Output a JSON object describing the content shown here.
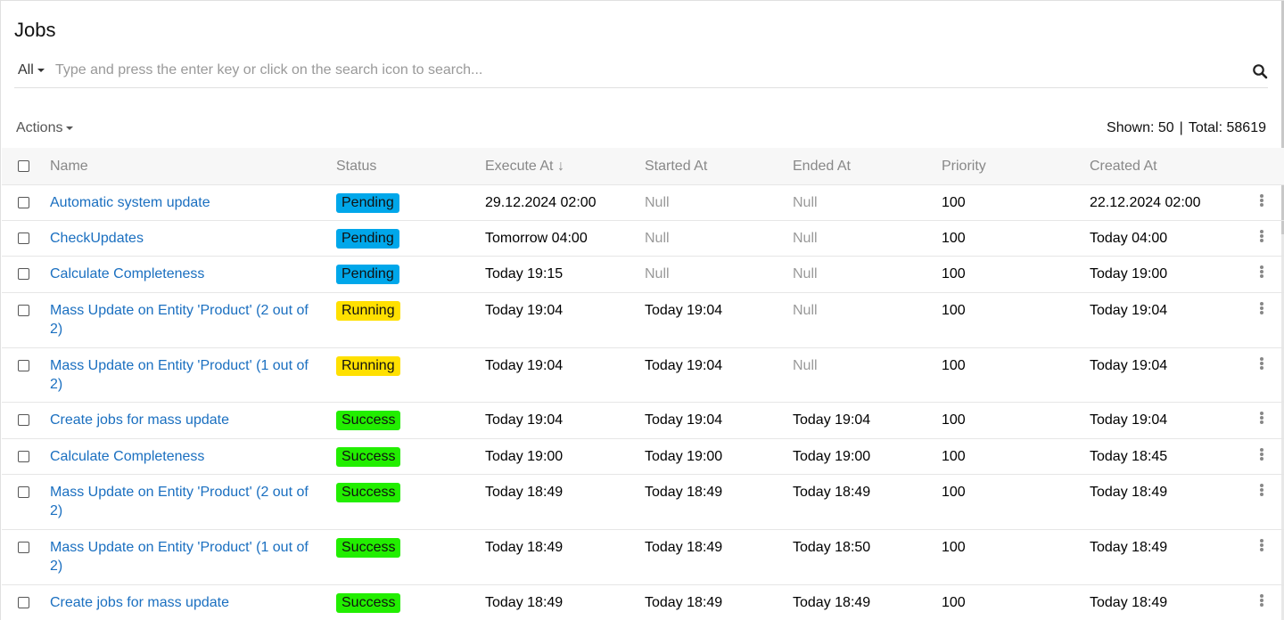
{
  "page": {
    "title": "Jobs"
  },
  "search": {
    "filter_label": "All",
    "placeholder": "Type and press the enter key or click on the search icon to search...",
    "icon": "search-icon"
  },
  "toolbar": {
    "actions_label": "Actions",
    "shown_label": "Shown: 50",
    "separator": "|",
    "total_label": "Total: 58619"
  },
  "table": {
    "columns": {
      "name": "Name",
      "status": "Status",
      "execute_at": "Execute At",
      "execute_sort_icon": "↓",
      "started_at": "Started At",
      "ended_at": "Ended At",
      "priority": "Priority",
      "created_at": "Created At"
    },
    "status_colors": {
      "Pending": "#00a7ea",
      "Running": "#ffe000",
      "Success": "#22ee00"
    },
    "rows": [
      {
        "name": "Automatic system update",
        "status": "Pending",
        "execute_at": "29.12.2024 02:00",
        "started_at": "Null",
        "ended_at": "Null",
        "priority": "100",
        "created_at": "22.12.2024 02:00"
      },
      {
        "name": "CheckUpdates",
        "status": "Pending",
        "execute_at": "Tomorrow 04:00",
        "started_at": "Null",
        "ended_at": "Null",
        "priority": "100",
        "created_at": "Today 04:00"
      },
      {
        "name": "Calculate Completeness",
        "status": "Pending",
        "execute_at": "Today 19:15",
        "started_at": "Null",
        "ended_at": "Null",
        "priority": "100",
        "created_at": "Today 19:00"
      },
      {
        "name": "Mass Update on Entity 'Product' (2 out of 2)",
        "status": "Running",
        "execute_at": "Today 19:04",
        "started_at": "Today 19:04",
        "ended_at": "Null",
        "priority": "100",
        "created_at": "Today 19:04"
      },
      {
        "name": "Mass Update on Entity 'Product' (1 out of 2)",
        "status": "Running",
        "execute_at": "Today 19:04",
        "started_at": "Today 19:04",
        "ended_at": "Null",
        "priority": "100",
        "created_at": "Today 19:04"
      },
      {
        "name": "Create jobs for mass update",
        "status": "Success",
        "execute_at": "Today 19:04",
        "started_at": "Today 19:04",
        "ended_at": "Today 19:04",
        "priority": "100",
        "created_at": "Today 19:04"
      },
      {
        "name": "Calculate Completeness",
        "status": "Success",
        "execute_at": "Today 19:00",
        "started_at": "Today 19:00",
        "ended_at": "Today 19:00",
        "priority": "100",
        "created_at": "Today 18:45"
      },
      {
        "name": "Mass Update on Entity 'Product' (2 out of 2)",
        "status": "Success",
        "execute_at": "Today 18:49",
        "started_at": "Today 18:49",
        "ended_at": "Today 18:49",
        "priority": "100",
        "created_at": "Today 18:49"
      },
      {
        "name": "Mass Update on Entity 'Product' (1 out of 2)",
        "status": "Success",
        "execute_at": "Today 18:49",
        "started_at": "Today 18:49",
        "ended_at": "Today 18:50",
        "priority": "100",
        "created_at": "Today 18:49"
      },
      {
        "name": "Create jobs for mass update",
        "status": "Success",
        "execute_at": "Today 18:49",
        "started_at": "Today 18:49",
        "ended_at": "Today 18:49",
        "priority": "100",
        "created_at": "Today 18:49"
      }
    ]
  }
}
